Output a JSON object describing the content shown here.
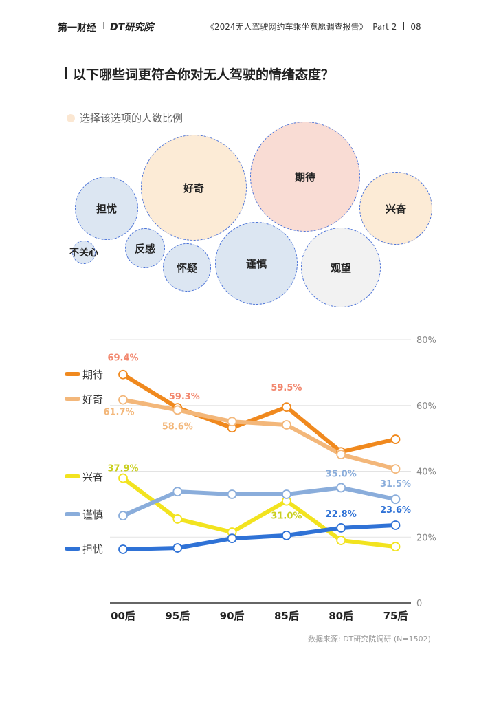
{
  "header": {
    "logo_cbn": "第一财经",
    "logo_dt": "DT研究院",
    "report": "《2024无人驾驶网约车乘坐意愿调查报告》",
    "part": "Part 2",
    "page": "08"
  },
  "question": "以下哪些词更符合你对无人驾驶的情绪态度？",
  "bubble_legend": "选择该选项的人数比例",
  "bubbles": [
    {
      "label": "不关心",
      "color": "#dce6f2"
    },
    {
      "label": "担忧",
      "color": "#dce6f2"
    },
    {
      "label": "反感",
      "color": "#dce6f2"
    },
    {
      "label": "怀疑",
      "color": "#dce6f2"
    },
    {
      "label": "好奇",
      "color": "#fcebd6"
    },
    {
      "label": "谨慎",
      "color": "#dce6f2"
    },
    {
      "label": "期待",
      "color": "#f9dcd4"
    },
    {
      "label": "观望",
      "color": "#f2f2f2"
    },
    {
      "label": "兴奋",
      "color": "#fcebd6"
    }
  ],
  "chart_data": {
    "type": "line",
    "categories": [
      "00后",
      "95后",
      "90后",
      "85后",
      "80后",
      "75后"
    ],
    "ylim": [
      0,
      80
    ],
    "yticks": [
      "0",
      "20%",
      "40%",
      "60%",
      "80%"
    ],
    "grid": true,
    "legend_position": "left",
    "series": [
      {
        "name": "期待",
        "color": "#f0891e",
        "label_color": "#f2876e",
        "values": [
          69.4,
          59.3,
          53.2,
          59.5,
          45.9,
          49.7
        ],
        "labels": [
          "69.4%",
          "59.3%",
          "",
          "59.5%",
          "",
          ""
        ]
      },
      {
        "name": "好奇",
        "color": "#f3b77a",
        "label_color": "#f3b77a",
        "values": [
          61.7,
          58.6,
          55.1,
          54.1,
          45.1,
          40.7
        ],
        "labels": [
          "61.7%",
          "58.6%",
          "",
          "",
          "",
          ""
        ]
      },
      {
        "name": "兴奋",
        "color": "#f2e31f",
        "label_color": "#c9cf1f",
        "values": [
          37.9,
          25.5,
          21.5,
          31.0,
          19.0,
          17.1
        ],
        "labels": [
          "37.9%",
          "",
          "",
          "31.0%",
          "",
          ""
        ]
      },
      {
        "name": "谨慎",
        "color": "#8aaddb",
        "label_color": "#8aaddb",
        "values": [
          26.5,
          33.8,
          33.0,
          33.0,
          35.0,
          31.5
        ],
        "labels": [
          "",
          "",
          "",
          "",
          "35.0%",
          "31.5%"
        ]
      },
      {
        "name": "担忧",
        "color": "#2f72d6",
        "label_color": "#2f72d6",
        "values": [
          16.3,
          16.7,
          19.6,
          20.5,
          22.8,
          23.6
        ],
        "labels": [
          "",
          "",
          "",
          "",
          "22.8%",
          "23.6%"
        ]
      }
    ]
  },
  "source": "数据来源: DT研究院调研 (N=1502)"
}
